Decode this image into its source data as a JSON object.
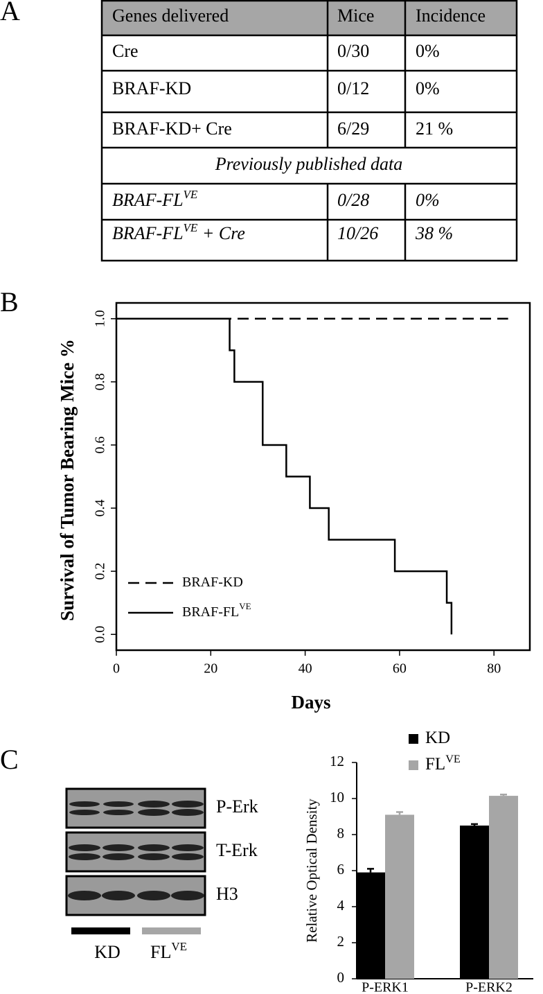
{
  "panel_labels": [
    "A",
    "B",
    "C"
  ],
  "table": {
    "header": [
      "Genes delivered",
      "Mice",
      "Incidence"
    ],
    "rows": [
      [
        "Cre",
        "0/30",
        "0%"
      ],
      [
        "BRAF-KD",
        "0/12",
        "0%"
      ],
      [
        "BRAF-KD+ Cre",
        "6/29",
        "21 %"
      ]
    ],
    "section": "Previously published data",
    "published_rows": [
      [
        {
          "text": "BRAF-FL",
          "sup": "VE"
        },
        "0/28",
        "0%"
      ],
      [
        {
          "text": "BRAF-FL",
          "sup": "VE",
          "after": " + Cre"
        },
        "10/26",
        "38 %"
      ]
    ]
  },
  "blot": {
    "rows": [
      "P-Erk",
      "T-Erk",
      "H3"
    ],
    "groups": [
      {
        "text": "KD"
      },
      {
        "text": "FL",
        "sup": "VE"
      }
    ]
  },
  "chart_data": [
    {
      "type": "line",
      "xlabel": "Days",
      "ylabel": "Survival of Tumor Bearing Mice %",
      "xlim": [
        0,
        87.6
      ],
      "ylim": [
        -0.05,
        1.05
      ],
      "xticks": [
        0,
        20,
        40,
        60,
        80
      ],
      "yticks": [
        {
          "value": 0,
          "label": "0.0"
        },
        {
          "value": 0.2,
          "label": "0.2"
        },
        {
          "value": 0.4,
          "label": "0.4"
        },
        {
          "value": 0.6,
          "label": "0.6"
        },
        {
          "value": 0.8,
          "label": "0.8"
        },
        {
          "value": 1,
          "label": "1.0"
        }
      ],
      "legend": "lower left",
      "series": [
        {
          "name": "BRAF-KD",
          "color": "#000000",
          "linestyle": "dashed",
          "x": [
            0,
            83
          ],
          "values": [
            1,
            1
          ]
        },
        {
          "name": "BRAF-FL",
          "name_superscript": "VE",
          "color": "#000000",
          "linestyle": "solid",
          "x": [
            0,
            24,
            24,
            25,
            25,
            31,
            31,
            36,
            36,
            41,
            41,
            45,
            45,
            59,
            59,
            70,
            70,
            71,
            71
          ],
          "values": [
            1,
            1,
            0.9,
            0.9,
            0.8,
            0.8,
            0.6,
            0.6,
            0.5,
            0.5,
            0.4,
            0.4,
            0.3,
            0.3,
            0.2,
            0.2,
            0.1,
            0.1,
            0
          ]
        }
      ]
    },
    {
      "type": "bar",
      "ylabel": "Relative Optical Density",
      "categories": [
        "P-ERK1",
        "P-ERK2"
      ],
      "ylim": [
        0,
        12
      ],
      "yticks": [
        0,
        2,
        4,
        6,
        8,
        10,
        12
      ],
      "legend": "upper right",
      "series": [
        {
          "name": "KD",
          "color": "#000000",
          "values": [
            5.9,
            8.5
          ],
          "errors": [
            0.2,
            0.08
          ]
        },
        {
          "name": "FL",
          "name_superscript": "VE",
          "color": "#a6a6a6",
          "values": [
            9.1,
            10.15
          ],
          "errors": [
            0.15,
            0.07
          ]
        }
      ]
    }
  ]
}
